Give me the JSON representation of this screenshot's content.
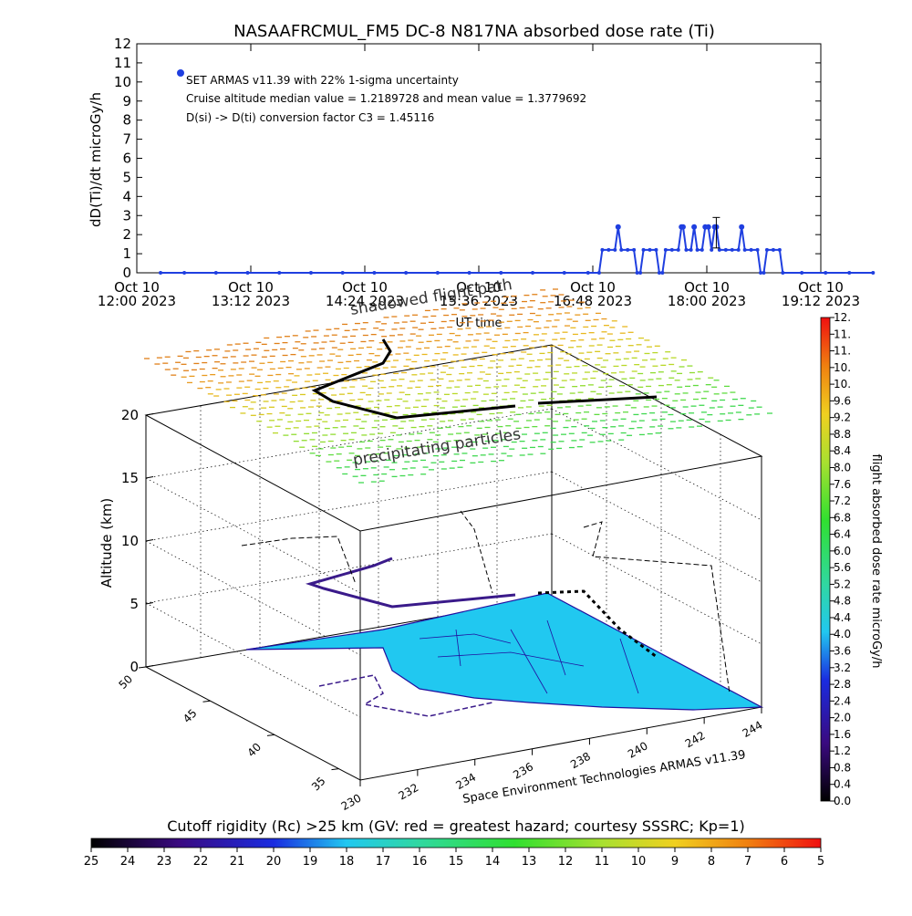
{
  "chart_data": [
    {
      "type": "scatter",
      "title": "NASAAFRCMUL_FM5 DC-8    N817NA absorbed dose rate (Ti)",
      "ylabel": "dD(Ti)/dt microGy/h",
      "xlabel": "UT time",
      "ylim": [
        0,
        12
      ],
      "yticks": [
        "0",
        "1",
        "2",
        "3",
        "4",
        "5",
        "6",
        "7",
        "8",
        "9",
        "10",
        "11",
        "12"
      ],
      "xticks": [
        {
          "line1": "Oct 10",
          "line2": "12:00 2023"
        },
        {
          "line1": "Oct 10",
          "line2": "13:12 2023"
        },
        {
          "line1": "Oct 10",
          "line2": "14:24 2023"
        },
        {
          "line1": "Oct 10",
          "line2": "15:36 2023"
        },
        {
          "line1": "Oct 10",
          "line2": "16:48 2023"
        },
        {
          "line1": "Oct 10",
          "line2": "18:00 2023"
        },
        {
          "line1": "Oct 10",
          "line2": "19:12 2023"
        }
      ],
      "xlim_minutes": [
        0,
        432
      ],
      "legend": {
        "line1": "SET ARMAS v11.39 with 22% 1-sigma uncertainty",
        "line2": "Cruise altitude median value = 1.2189728 and mean value = 1.3779692",
        "line3": "D(si) -> D(ti) conversion factor C3 = 1.45116"
      },
      "series_color": "#1f3fe0",
      "series": [
        {
          "x": 15,
          "y": 0
        },
        {
          "x": 30,
          "y": 0
        },
        {
          "x": 50,
          "y": 0
        },
        {
          "x": 70,
          "y": 0
        },
        {
          "x": 90,
          "y": 0
        },
        {
          "x": 110,
          "y": 0
        },
        {
          "x": 130,
          "y": 0
        },
        {
          "x": 150,
          "y": 0
        },
        {
          "x": 170,
          "y": 0
        },
        {
          "x": 190,
          "y": 0
        },
        {
          "x": 210,
          "y": 0
        },
        {
          "x": 230,
          "y": 0
        },
        {
          "x": 250,
          "y": 0
        },
        {
          "x": 270,
          "y": 0
        },
        {
          "x": 285,
          "y": 0
        },
        {
          "x": 292,
          "y": 0
        },
        {
          "x": 294,
          "y": 1.2
        },
        {
          "x": 298,
          "y": 1.2
        },
        {
          "x": 302,
          "y": 1.2
        },
        {
          "x": 304,
          "y": 2.4
        },
        {
          "x": 306,
          "y": 1.2
        },
        {
          "x": 310,
          "y": 1.2
        },
        {
          "x": 314,
          "y": 1.2
        },
        {
          "x": 316,
          "y": 0
        },
        {
          "x": 318,
          "y": 0
        },
        {
          "x": 320,
          "y": 1.2
        },
        {
          "x": 324,
          "y": 1.2
        },
        {
          "x": 328,
          "y": 1.2
        },
        {
          "x": 330,
          "y": 0
        },
        {
          "x": 332,
          "y": 0
        },
        {
          "x": 334,
          "y": 1.2
        },
        {
          "x": 338,
          "y": 1.2
        },
        {
          "x": 342,
          "y": 1.2
        },
        {
          "x": 344,
          "y": 2.4
        },
        {
          "x": 345,
          "y": 2.4
        },
        {
          "x": 347,
          "y": 1.2
        },
        {
          "x": 350,
          "y": 1.2
        },
        {
          "x": 352,
          "y": 2.4
        },
        {
          "x": 354,
          "y": 1.2
        },
        {
          "x": 357,
          "y": 1.2
        },
        {
          "x": 359,
          "y": 2.4
        },
        {
          "x": 361,
          "y": 2.4
        },
        {
          "x": 363,
          "y": 1.2
        },
        {
          "x": 365,
          "y": 2.4
        },
        {
          "x": 366,
          "y": 2.4
        },
        {
          "x": 368,
          "y": 1.2
        },
        {
          "x": 372,
          "y": 1.2
        },
        {
          "x": 376,
          "y": 1.2
        },
        {
          "x": 380,
          "y": 1.2
        },
        {
          "x": 382,
          "y": 2.4
        },
        {
          "x": 384,
          "y": 1.2
        },
        {
          "x": 388,
          "y": 1.2
        },
        {
          "x": 392,
          "y": 1.2
        },
        {
          "x": 394,
          "y": 0
        },
        {
          "x": 396,
          "y": 0
        },
        {
          "x": 398,
          "y": 1.2
        },
        {
          "x": 402,
          "y": 1.2
        },
        {
          "x": 406,
          "y": 1.2
        },
        {
          "x": 408,
          "y": 0
        },
        {
          "x": 420,
          "y": 0
        },
        {
          "x": 435,
          "y": 0
        },
        {
          "x": 450,
          "y": 0
        },
        {
          "x": 465,
          "y": 0
        }
      ],
      "error_bar": {
        "x": 366,
        "low": 1.3,
        "high": 2.9
      }
    },
    {
      "type": "scatter",
      "subtype": "3d-flight-track",
      "zlabel": "Altitude (km)",
      "zticks": [
        "0",
        "5",
        "10",
        "15",
        "20"
      ],
      "zlim": [
        0,
        22
      ],
      "lat_ticks": [
        "50",
        "45",
        "40",
        "35"
      ],
      "lon_ticks": [
        "230",
        "232",
        "234",
        "236",
        "238",
        "240",
        "242",
        "244"
      ],
      "annotations": {
        "shadow": "shadowed flight path",
        "particles": "precipitating particles",
        "credit": "Space Environment Technologies ARMAS v11.39"
      },
      "colorbar_dose": {
        "label": "flight absorbed dose rate microGy/h",
        "ticks": [
          "0.0",
          "0.4",
          "0.8",
          "1.2",
          "1.6",
          "2.0",
          "2.4",
          "2.8",
          "3.2",
          "3.6",
          "4.0",
          "4.4",
          "4.8",
          "5.2",
          "5.6",
          "6.0",
          "6.4",
          "6.8",
          "7.2",
          "7.6",
          "8.0",
          "8.4",
          "8.8",
          "9.2",
          "9.6",
          "10.",
          "10.",
          "11.",
          "11.",
          "12."
        ]
      },
      "colorbar_rigidity": {
        "label": "Cutoff rigidity (Rc) >25 km (GV: red = greatest hazard; courtesy SSSRC; Kp=1)",
        "ticks": [
          "25",
          "24",
          "23",
          "22",
          "21",
          "20",
          "19",
          "18",
          "17",
          "16",
          "15",
          "14",
          "13",
          "12",
          "11",
          "10",
          "9",
          "8",
          "7",
          "6",
          "5"
        ]
      },
      "colors": {
        "land": "#21c8f0",
        "coast": "#2010a0",
        "track": "#000000",
        "track_low": "#3a1a8a"
      }
    }
  ]
}
